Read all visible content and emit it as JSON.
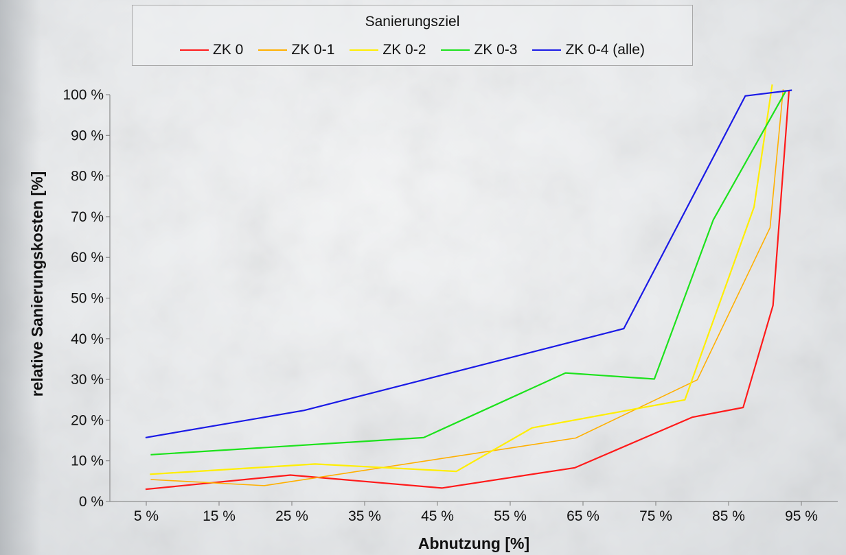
{
  "chart_data": {
    "type": "line",
    "legend_title": "Sanierungsziel",
    "legend_position": "top",
    "xlabel": "Abnutzung [%]",
    "ylabel": "relative Sanierungskosten [%]",
    "x_ticks": [
      "5 %",
      "15 %",
      "25 %",
      "35 %",
      "45 %",
      "55 %",
      "65 %",
      "75 %",
      "85 %",
      "95 %"
    ],
    "y_ticks": [
      "0 %",
      "10 %",
      "20 %",
      "30 %",
      "40 %",
      "50 %",
      "60 %",
      "70 %",
      "80 %",
      "90 %",
      "100 %"
    ],
    "xlim": [
      0,
      100
    ],
    "ylim": [
      0,
      100
    ],
    "grid": false,
    "series": [
      {
        "name": "ZK 0",
        "color": "#ff1a1a",
        "points": [
          [
            4.9,
            3
          ],
          [
            24.8,
            6.5
          ],
          [
            45.6,
            3.3
          ],
          [
            63.9,
            8.3
          ],
          [
            80.0,
            20.7
          ],
          [
            87.0,
            23.1
          ],
          [
            91.1,
            48.2
          ],
          [
            93.3,
            101.0
          ]
        ]
      },
      {
        "name": "ZK 0-1",
        "color": "#ffb000",
        "points": [
          [
            5.6,
            5.4
          ],
          [
            21.2,
            3.9
          ],
          [
            64.0,
            15.6
          ],
          [
            80.7,
            29.9
          ],
          [
            90.7,
            67.3
          ],
          [
            92.5,
            101.3
          ]
        ]
      },
      {
        "name": "ZK 0-2",
        "color": "#ffee00",
        "points": [
          [
            5.5,
            6.7
          ],
          [
            28.2,
            9.2
          ],
          [
            47.6,
            7.4
          ],
          [
            58.0,
            18.1
          ],
          [
            79.0,
            25.0
          ],
          [
            88.5,
            72.4
          ],
          [
            91.0,
            102.5
          ]
        ]
      },
      {
        "name": "ZK 0-3",
        "color": "#1ce21c",
        "points": [
          [
            5.6,
            11.5
          ],
          [
            43.1,
            15.7
          ],
          [
            62.6,
            31.6
          ],
          [
            74.8,
            30.1
          ],
          [
            82.9,
            69.2
          ],
          [
            92.9,
            101.0
          ]
        ]
      },
      {
        "name": "ZK 0-4 (alle)",
        "color": "#1a1ae6",
        "points": [
          [
            4.9,
            15.7
          ],
          [
            26.7,
            22.4
          ],
          [
            70.6,
            42.5
          ],
          [
            87.3,
            99.7
          ],
          [
            93.7,
            101.1
          ]
        ]
      }
    ]
  }
}
